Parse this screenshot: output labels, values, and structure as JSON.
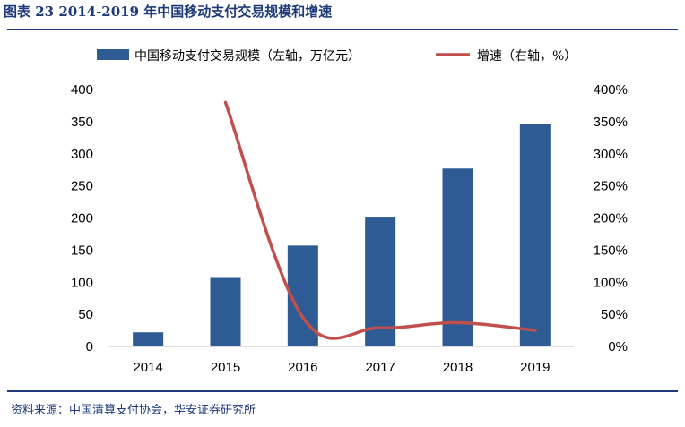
{
  "title": "图表 23 2014-2019 年中国移动支付交易规模和增速",
  "source": "资料来源：中国清算支付协会，华安证券研究所",
  "colors": {
    "bar": "#2e5b94",
    "line": "#c0504d",
    "rule": "#1f3a7a"
  },
  "chart_data": {
    "type": "bar+line",
    "categories": [
      "2014",
      "2015",
      "2016",
      "2017",
      "2018",
      "2019"
    ],
    "series": [
      {
        "name": "中国移动支付交易规模（左轴，万亿元）",
        "type": "bar",
        "axis": "left",
        "values": [
          22,
          108,
          157,
          202,
          277,
          347
        ]
      },
      {
        "name": "增速（右轴，%）",
        "type": "line",
        "axis": "right",
        "values": [
          null,
          380,
          45,
          29,
          37,
          25
        ]
      }
    ],
    "y_left": {
      "min": 0,
      "max": 400,
      "ticks": [
        "0",
        "50",
        "100",
        "150",
        "200",
        "250",
        "300",
        "350",
        "400"
      ]
    },
    "y_right": {
      "min": 0,
      "max": 400,
      "ticks": [
        "0%",
        "50%",
        "100%",
        "150%",
        "200%",
        "250%",
        "300%",
        "350%",
        "400%"
      ]
    },
    "legend_position": "top",
    "grid": false
  }
}
